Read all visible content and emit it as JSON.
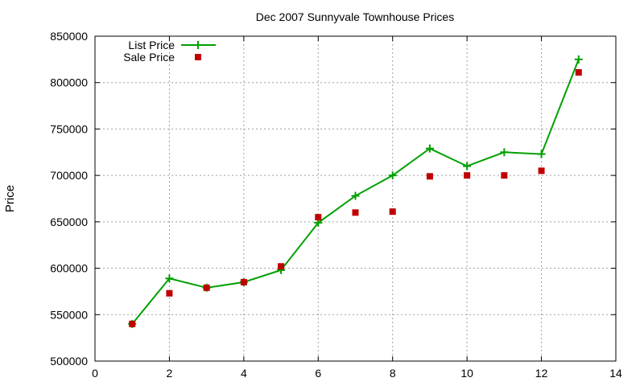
{
  "chart_data": {
    "type": "line",
    "title": "Dec 2007 Sunnyvale Townhouse Prices",
    "xlabel": "",
    "ylabel": "Price",
    "xlim": [
      0,
      14
    ],
    "ylim": [
      500000,
      850000
    ],
    "xticks": [
      0,
      2,
      4,
      6,
      8,
      10,
      12,
      14
    ],
    "yticks": [
      500000,
      550000,
      600000,
      650000,
      700000,
      750000,
      800000,
      850000
    ],
    "grid": true,
    "legend_position": "top-left",
    "series": [
      {
        "name": "List Price",
        "style": "linespoints",
        "color": "#00a000",
        "x": [
          1,
          2,
          3,
          4,
          5,
          6,
          7,
          8,
          9,
          10,
          11,
          12,
          13
        ],
        "y": [
          540000,
          589000,
          579000,
          585000,
          598000,
          649000,
          678000,
          700000,
          729000,
          710000,
          725000,
          723000,
          825000
        ]
      },
      {
        "name": "Sale Price",
        "style": "points",
        "color": "#c00000",
        "x": [
          1,
          2,
          3,
          4,
          5,
          6,
          7,
          8,
          9,
          10,
          11,
          12,
          13
        ],
        "y": [
          540000,
          573000,
          579000,
          585000,
          602000,
          655000,
          660000,
          661000,
          699000,
          700000,
          700000,
          705000,
          811000
        ]
      }
    ]
  }
}
